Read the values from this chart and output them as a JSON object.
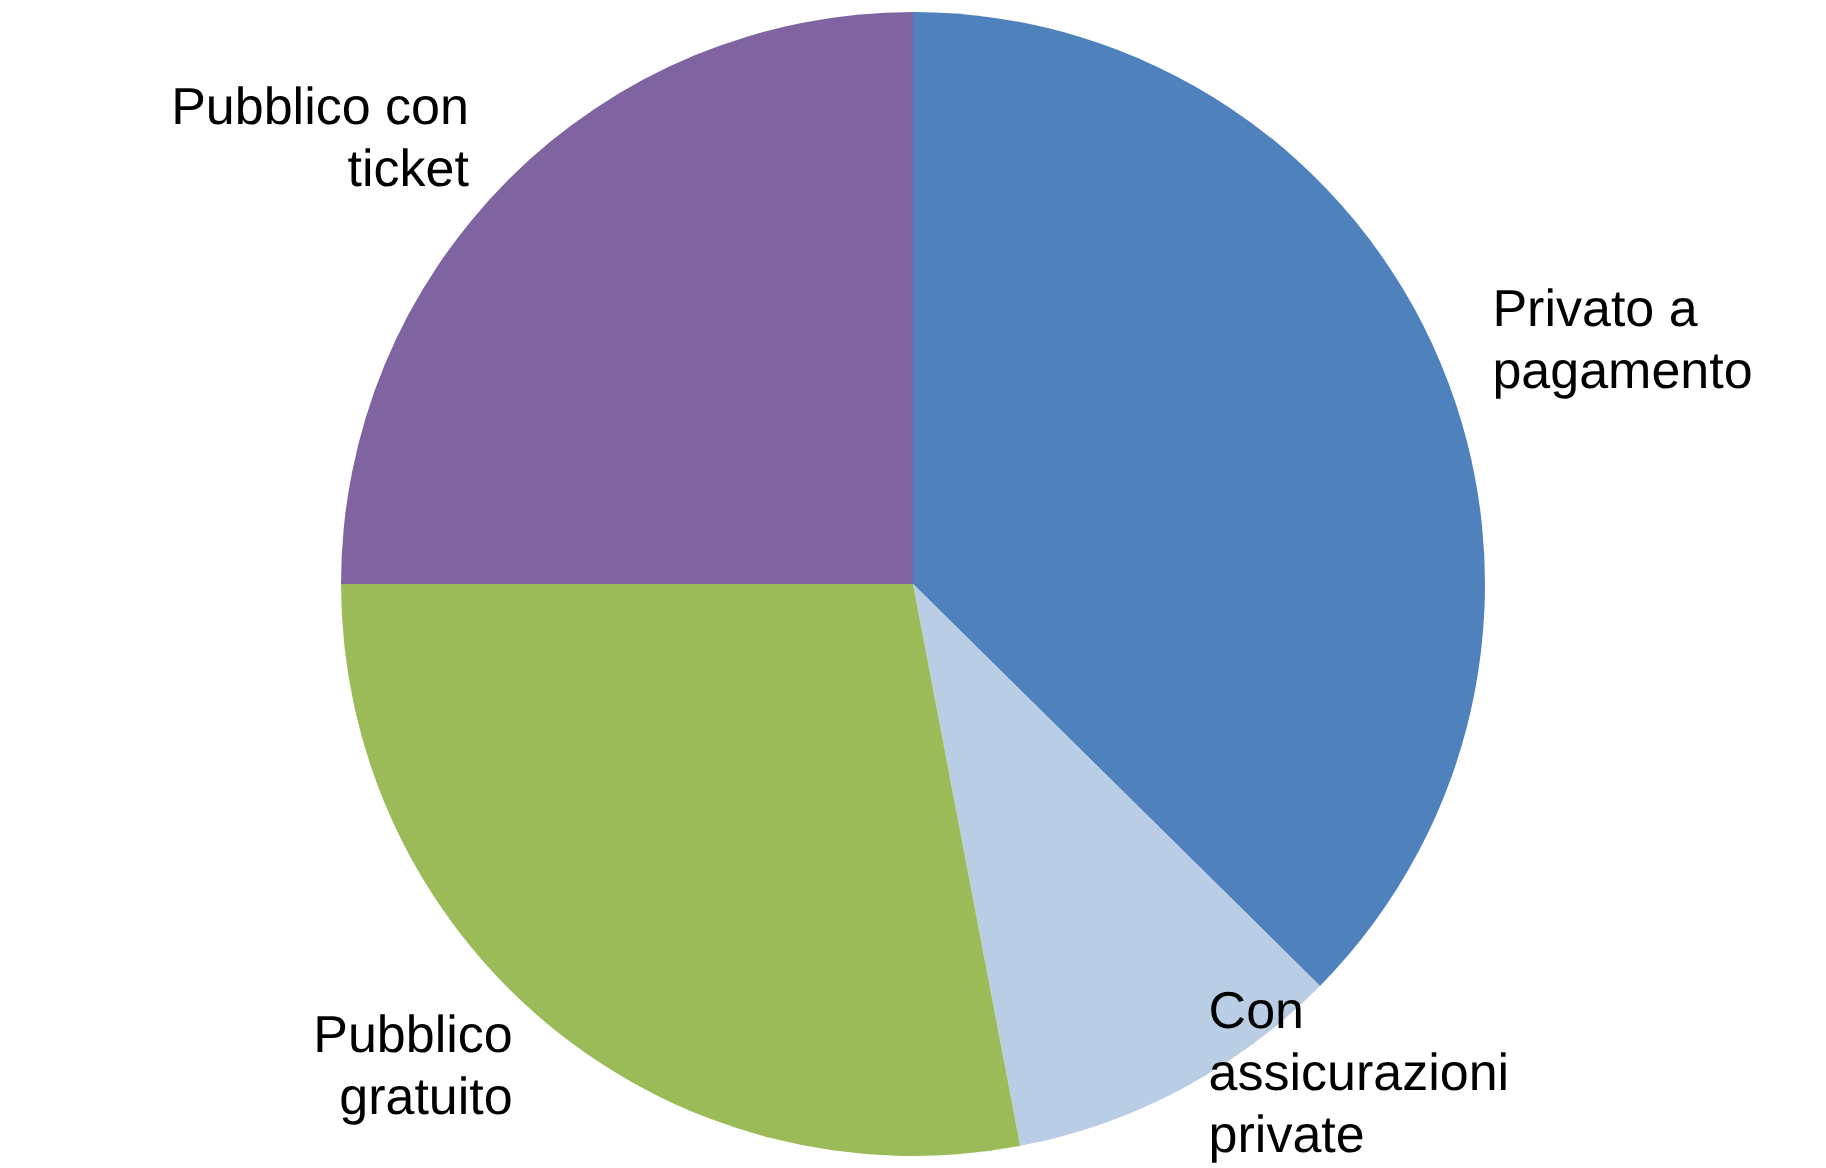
{
  "chart_data": {
    "type": "pie",
    "categories": [
      "Privato a pagamento",
      "Con assicurazioni private",
      "Pubblico gratuito",
      "Pubblico con ticket"
    ],
    "values": [
      37.4,
      9.6,
      28.0,
      25.0
    ],
    "colors": [
      "#4f81bd",
      "#b9cde5",
      "#9bbb59",
      "#8064a2"
    ]
  }
}
